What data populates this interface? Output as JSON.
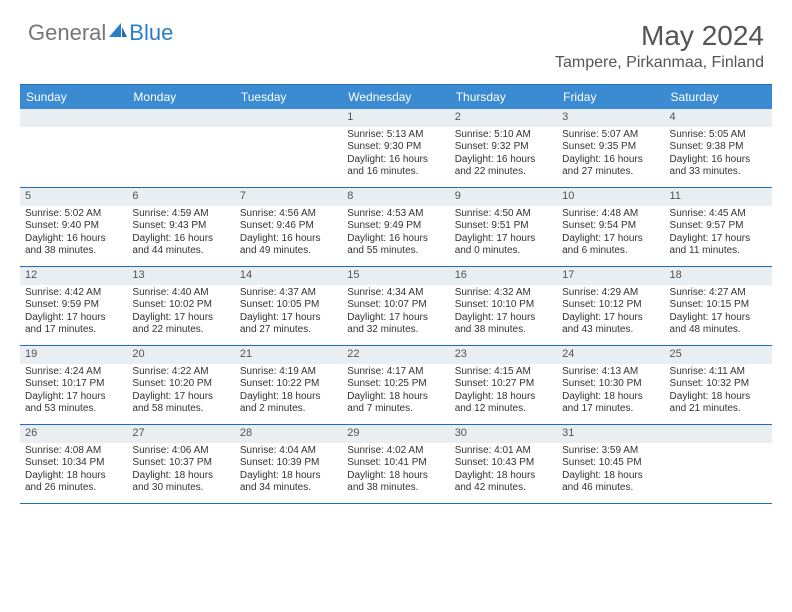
{
  "logo": {
    "text1": "General",
    "text2": "Blue",
    "accent_color": "#2a7ec4",
    "gray_color": "#767676"
  },
  "title": "May 2024",
  "location": "Tampere, Pirkanmaa, Finland",
  "colors": {
    "header_bg": "#3b8bd2",
    "border": "#1f6db3",
    "daynum_bg": "#e9eef2",
    "text": "#333333"
  },
  "days_of_week": [
    "Sunday",
    "Monday",
    "Tuesday",
    "Wednesday",
    "Thursday",
    "Friday",
    "Saturday"
  ],
  "weeks": [
    [
      null,
      null,
      null,
      {
        "n": "1",
        "sr": "5:13 AM",
        "ss": "9:30 PM",
        "dl": "16 hours and 16 minutes."
      },
      {
        "n": "2",
        "sr": "5:10 AM",
        "ss": "9:32 PM",
        "dl": "16 hours and 22 minutes."
      },
      {
        "n": "3",
        "sr": "5:07 AM",
        "ss": "9:35 PM",
        "dl": "16 hours and 27 minutes."
      },
      {
        "n": "4",
        "sr": "5:05 AM",
        "ss": "9:38 PM",
        "dl": "16 hours and 33 minutes."
      }
    ],
    [
      {
        "n": "5",
        "sr": "5:02 AM",
        "ss": "9:40 PM",
        "dl": "16 hours and 38 minutes."
      },
      {
        "n": "6",
        "sr": "4:59 AM",
        "ss": "9:43 PM",
        "dl": "16 hours and 44 minutes."
      },
      {
        "n": "7",
        "sr": "4:56 AM",
        "ss": "9:46 PM",
        "dl": "16 hours and 49 minutes."
      },
      {
        "n": "8",
        "sr": "4:53 AM",
        "ss": "9:49 PM",
        "dl": "16 hours and 55 minutes."
      },
      {
        "n": "9",
        "sr": "4:50 AM",
        "ss": "9:51 PM",
        "dl": "17 hours and 0 minutes."
      },
      {
        "n": "10",
        "sr": "4:48 AM",
        "ss": "9:54 PM",
        "dl": "17 hours and 6 minutes."
      },
      {
        "n": "11",
        "sr": "4:45 AM",
        "ss": "9:57 PM",
        "dl": "17 hours and 11 minutes."
      }
    ],
    [
      {
        "n": "12",
        "sr": "4:42 AM",
        "ss": "9:59 PM",
        "dl": "17 hours and 17 minutes."
      },
      {
        "n": "13",
        "sr": "4:40 AM",
        "ss": "10:02 PM",
        "dl": "17 hours and 22 minutes."
      },
      {
        "n": "14",
        "sr": "4:37 AM",
        "ss": "10:05 PM",
        "dl": "17 hours and 27 minutes."
      },
      {
        "n": "15",
        "sr": "4:34 AM",
        "ss": "10:07 PM",
        "dl": "17 hours and 32 minutes."
      },
      {
        "n": "16",
        "sr": "4:32 AM",
        "ss": "10:10 PM",
        "dl": "17 hours and 38 minutes."
      },
      {
        "n": "17",
        "sr": "4:29 AM",
        "ss": "10:12 PM",
        "dl": "17 hours and 43 minutes."
      },
      {
        "n": "18",
        "sr": "4:27 AM",
        "ss": "10:15 PM",
        "dl": "17 hours and 48 minutes."
      }
    ],
    [
      {
        "n": "19",
        "sr": "4:24 AM",
        "ss": "10:17 PM",
        "dl": "17 hours and 53 minutes."
      },
      {
        "n": "20",
        "sr": "4:22 AM",
        "ss": "10:20 PM",
        "dl": "17 hours and 58 minutes."
      },
      {
        "n": "21",
        "sr": "4:19 AM",
        "ss": "10:22 PM",
        "dl": "18 hours and 2 minutes."
      },
      {
        "n": "22",
        "sr": "4:17 AM",
        "ss": "10:25 PM",
        "dl": "18 hours and 7 minutes."
      },
      {
        "n": "23",
        "sr": "4:15 AM",
        "ss": "10:27 PM",
        "dl": "18 hours and 12 minutes."
      },
      {
        "n": "24",
        "sr": "4:13 AM",
        "ss": "10:30 PM",
        "dl": "18 hours and 17 minutes."
      },
      {
        "n": "25",
        "sr": "4:11 AM",
        "ss": "10:32 PM",
        "dl": "18 hours and 21 minutes."
      }
    ],
    [
      {
        "n": "26",
        "sr": "4:08 AM",
        "ss": "10:34 PM",
        "dl": "18 hours and 26 minutes."
      },
      {
        "n": "27",
        "sr": "4:06 AM",
        "ss": "10:37 PM",
        "dl": "18 hours and 30 minutes."
      },
      {
        "n": "28",
        "sr": "4:04 AM",
        "ss": "10:39 PM",
        "dl": "18 hours and 34 minutes."
      },
      {
        "n": "29",
        "sr": "4:02 AM",
        "ss": "10:41 PM",
        "dl": "18 hours and 38 minutes."
      },
      {
        "n": "30",
        "sr": "4:01 AM",
        "ss": "10:43 PM",
        "dl": "18 hours and 42 minutes."
      },
      {
        "n": "31",
        "sr": "3:59 AM",
        "ss": "10:45 PM",
        "dl": "18 hours and 46 minutes."
      },
      null
    ]
  ],
  "labels": {
    "sunrise": "Sunrise:",
    "sunset": "Sunset:",
    "daylight": "Daylight:"
  }
}
